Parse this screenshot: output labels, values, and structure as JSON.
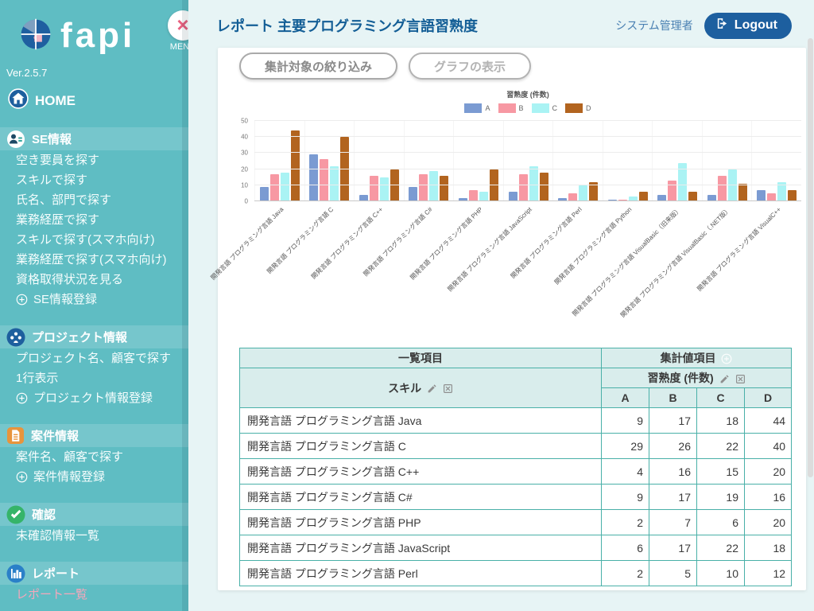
{
  "app": {
    "logo_text": "fapi",
    "version": "Ver.2.5.7",
    "menu_close_label": "MENU"
  },
  "sidebar": {
    "home_label": "HOME",
    "sections": [
      {
        "icon": "se-badge-icon",
        "label": "SE情報",
        "items": [
          {
            "label": "空き要員を探す"
          },
          {
            "label": "スキルで探す"
          },
          {
            "label": "氏名、部門で探す"
          },
          {
            "label": "業務経歴で探す"
          },
          {
            "label": "スキルで探す(スマホ向け)"
          },
          {
            "label": "業務経歴で探す(スマホ向け)"
          },
          {
            "label": "資格取得状況を見る"
          },
          {
            "label": "SE情報登録",
            "add": true
          }
        ]
      },
      {
        "icon": "project-people-icon",
        "label": "プロジェクト情報",
        "items": [
          {
            "label": "プロジェクト名、顧客で探す"
          },
          {
            "label": "1行表示"
          },
          {
            "label": "プロジェクト情報登録",
            "add": true
          }
        ]
      },
      {
        "icon": "case-document-icon",
        "label": "案件情報",
        "items": [
          {
            "label": "案件名、顧客で探す"
          },
          {
            "label": "案件情報登録",
            "add": true
          }
        ]
      },
      {
        "icon": "confirm-check-icon",
        "label": "確認",
        "items": [
          {
            "label": "未確認情報一覧"
          }
        ]
      },
      {
        "icon": "report-chart-icon",
        "label": "レポート",
        "items": [
          {
            "label": "レポート一覧",
            "active": true
          }
        ]
      }
    ]
  },
  "header": {
    "title": "レポート 主要プログラミング言語習熟度",
    "user": "システム管理者",
    "logout_label": "Logout"
  },
  "toolbar": {
    "filter_button": "集計対象の絞り込み",
    "graph_button": "グラフの表示"
  },
  "chart_data": {
    "type": "bar",
    "title": "習熟度 (件数)",
    "categories": [
      "開発言語 プログラミング言語 Java",
      "開発言語 プログラミング言語 C",
      "開発言語 プログラミング言語 C++",
      "開発言語 プログラミング言語 C#",
      "開発言語 プログラミング言語 PHP",
      "開発言語 プログラミング言語 JavaScript",
      "開発言語 プログラミング言語 Perl",
      "開発言語 プログラミング言語 Python",
      "開発言語 プログラミング言語 VisualBasic（旧来版）",
      "開発言語 プログラミング言語 VisualBasic（.NET版）",
      "開発言語 プログラミング言語 VisualC++"
    ],
    "series": [
      {
        "name": "A",
        "color": "#7b9bd2",
        "values": [
          9,
          29,
          4,
          9,
          2,
          6,
          2,
          1,
          4,
          4,
          7
        ]
      },
      {
        "name": "B",
        "color": "#f798a3",
        "values": [
          17,
          26,
          16,
          17,
          7,
          17,
          5,
          1,
          13,
          16,
          5
        ]
      },
      {
        "name": "C",
        "color": "#aaf3f4",
        "values": [
          18,
          22,
          15,
          19,
          6,
          22,
          10,
          3,
          24,
          20,
          12
        ]
      },
      {
        "name": "D",
        "color": "#b2641f",
        "values": [
          44,
          40,
          20,
          16,
          20,
          18,
          12,
          6,
          6,
          11,
          7
        ]
      }
    ],
    "ylim": [
      0,
      50
    ],
    "yticks": [
      0,
      10,
      20,
      30,
      40,
      50
    ],
    "grid": true,
    "legend_position": "top"
  },
  "table": {
    "group_headers": {
      "list_item": "一覧項目",
      "aggregate_item": "集計値項目"
    },
    "skill_header": "スキル",
    "measure_header": "習熟度 (件数)",
    "value_columns": [
      "A",
      "B",
      "C",
      "D"
    ],
    "rows": [
      {
        "skill": "開発言語 プログラミング言語 Java",
        "values": [
          9,
          17,
          18,
          44
        ]
      },
      {
        "skill": "開発言語 プログラミング言語 C",
        "values": [
          29,
          26,
          22,
          40
        ]
      },
      {
        "skill": "開発言語 プログラミング言語 C++",
        "values": [
          4,
          16,
          15,
          20
        ]
      },
      {
        "skill": "開発言語 プログラミング言語 C#",
        "values": [
          9,
          17,
          19,
          16
        ]
      },
      {
        "skill": "開発言語 プログラミング言語 PHP",
        "values": [
          2,
          7,
          6,
          20
        ]
      },
      {
        "skill": "開発言語 プログラミング言語 JavaScript",
        "values": [
          6,
          17,
          22,
          18
        ]
      },
      {
        "skill": "開発言語 プログラミング言語 Perl",
        "values": [
          2,
          5,
          10,
          12
        ]
      }
    ]
  },
  "colors": {
    "sidebar_teal": "#5fbdc3",
    "main_background": "#e7f4f5",
    "title_blue": "#135e96",
    "logout_blue": "#1d5f9f",
    "table_border_teal": "#49b0a8",
    "table_header_bg": "#d9edec",
    "active_item_pink": "#f4a7bb"
  }
}
